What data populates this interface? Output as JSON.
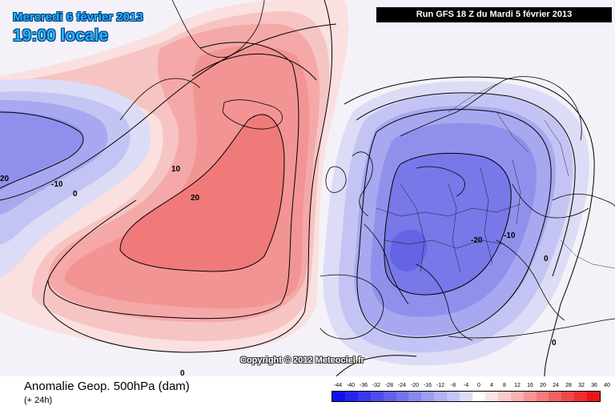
{
  "header": {
    "date": "Mercredi 6 février 2013",
    "time": "19:00 locale",
    "run": "Run GFS 18 Z du Mardi 5 février 2013"
  },
  "copyright": "Copyright © 2012 Meteociel.fr",
  "footer": {
    "title": "Anomalie Geop. 500hPa (dam)",
    "subtitle": "(+ 24h)"
  },
  "contour_labels": [
    {
      "id": "neg20-west",
      "text": "20"
    },
    {
      "id": "neg10-west",
      "text": "-10"
    },
    {
      "id": "zero-west",
      "text": "0"
    },
    {
      "id": "pos10",
      "text": "10"
    },
    {
      "id": "pos20",
      "text": "20"
    },
    {
      "id": "neg20-east",
      "text": "-20"
    },
    {
      "id": "neg10-east",
      "text": "-10"
    },
    {
      "id": "zero-east",
      "text": "0"
    },
    {
      "id": "zero-south",
      "text": "0"
    },
    {
      "id": "zero-bottom",
      "text": "0"
    }
  ],
  "legend": {
    "ticks": [
      "-44",
      "-40",
      "-36",
      "-32",
      "-28",
      "-24",
      "-20",
      "-16",
      "-12",
      "-8",
      "-4",
      "0",
      "4",
      "8",
      "12",
      "16",
      "20",
      "24",
      "28",
      "32",
      "36",
      "40"
    ],
    "colors": [
      "#1010ee",
      "#2424f2",
      "#3838f2",
      "#4c4cf0",
      "#6060ee",
      "#7474ee",
      "#8888f0",
      "#9c9cf2",
      "#b0b0f4",
      "#c4c4f6",
      "#dcdcf8",
      "#ffffff",
      "#fde4e4",
      "#fbcaca",
      "#f9b0b0",
      "#f79696",
      "#f57c7c",
      "#f36262",
      "#f14848",
      "#ef2e2e",
      "#ed1414"
    ]
  },
  "colors": {
    "header_text": "#28b4ff",
    "run_box_bg": "#000000"
  }
}
